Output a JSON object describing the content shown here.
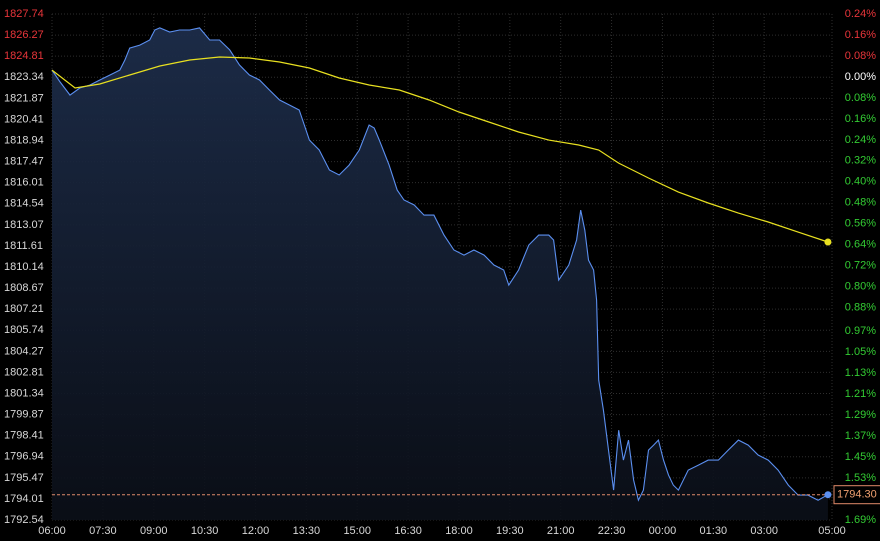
{
  "chart_data": {
    "type": "line",
    "xlim": [
      6,
      29
    ],
    "xticks": [
      {
        "value": 6,
        "label": "06:00"
      },
      {
        "value": 7.5,
        "label": "07:30"
      },
      {
        "value": 9,
        "label": "09:00"
      },
      {
        "value": 10.5,
        "label": "10:30"
      },
      {
        "value": 12,
        "label": "12:00"
      },
      {
        "value": 13.5,
        "label": "13:30"
      },
      {
        "value": 15,
        "label": "15:00"
      },
      {
        "value": 16.5,
        "label": "16:30"
      },
      {
        "value": 18,
        "label": "18:00"
      },
      {
        "value": 19.5,
        "label": "19:30"
      },
      {
        "value": 21,
        "label": "21:00"
      },
      {
        "value": 22.5,
        "label": "22:30"
      },
      {
        "value": 24,
        "label": "00:00"
      },
      {
        "value": 25.5,
        "label": "01:30"
      },
      {
        "value": 27,
        "label": "03:00"
      },
      {
        "value": 29,
        "label": "05:00"
      }
    ],
    "ylim": [
      1792.54,
      1827.74
    ],
    "yticks": [
      1827.74,
      1826.27,
      1824.81,
      1823.34,
      1821.87,
      1820.41,
      1818.94,
      1817.47,
      1816.01,
      1814.54,
      1813.07,
      1811.61,
      1810.14,
      1808.67,
      1807.21,
      1805.74,
      1804.27,
      1802.81,
      1801.34,
      1799.87,
      1798.41,
      1796.94,
      1795.47,
      1794.01,
      1792.54
    ],
    "y2lim": [
      -1.69,
      0.24
    ],
    "y2ticks": [
      {
        "value": 0.24,
        "label": "0.24%"
      },
      {
        "value": 0.16,
        "label": "0.16%"
      },
      {
        "value": 0.08,
        "label": "0.08%"
      },
      {
        "value": 0,
        "label": "0.00%"
      },
      {
        "value": -0.08,
        "label": "0.08%"
      },
      {
        "value": -0.16,
        "label": "0.16%"
      },
      {
        "value": -0.24,
        "label": "0.24%"
      },
      {
        "value": -0.32,
        "label": "0.32%"
      },
      {
        "value": -0.4,
        "label": "0.40%"
      },
      {
        "value": -0.48,
        "label": "0.48%"
      },
      {
        "value": -0.56,
        "label": "0.56%"
      },
      {
        "value": -0.64,
        "label": "0.64%"
      },
      {
        "value": -0.72,
        "label": "0.72%"
      },
      {
        "value": -0.8,
        "label": "0.80%"
      },
      {
        "value": -0.88,
        "label": "0.88%"
      },
      {
        "value": -0.97,
        "label": "0.97%"
      },
      {
        "value": -1.05,
        "label": "1.05%"
      },
      {
        "value": -1.13,
        "label": "1.13%"
      },
      {
        "value": -1.21,
        "label": "1.21%"
      },
      {
        "value": -1.29,
        "label": "1.29%"
      },
      {
        "value": -1.37,
        "label": "1.37%"
      },
      {
        "value": -1.45,
        "label": "1.45%"
      },
      {
        "value": -1.53,
        "label": "1.53%"
      },
      {
        "value": -1.61,
        "label": "1.61%"
      },
      {
        "value": -1.69,
        "label": "1.69%"
      }
    ],
    "grid": true,
    "up_color": "#e8353a",
    "down_color": "#33cc33",
    "series": [
      {
        "color": "#5b8ff0",
        "x": [
          6.0,
          6.24,
          6.53,
          6.82,
          7.12,
          7.41,
          7.71,
          8.0,
          8.15,
          8.29,
          8.59,
          8.88,
          9.03,
          9.18,
          9.47,
          9.76,
          10.06,
          10.35,
          10.65,
          10.94,
          11.24,
          11.53,
          11.82,
          12.12,
          12.41,
          12.71,
          13.0,
          13.29,
          13.44,
          13.59,
          13.88,
          14.18,
          14.47,
          14.76,
          15.06,
          15.35,
          15.5,
          15.65,
          15.94,
          16.18,
          16.38,
          16.68,
          16.97,
          17.26,
          17.56,
          17.85,
          18.15,
          18.44,
          18.74,
          19.03,
          19.32,
          19.47,
          19.76,
          20.06,
          20.35,
          20.65,
          20.79,
          20.94,
          21.24,
          21.47,
          21.59,
          21.71,
          21.82,
          21.97,
          22.06,
          22.12,
          22.26,
          22.41,
          22.56,
          22.71,
          22.85,
          23.0,
          23.15,
          23.29,
          23.44,
          23.59,
          23.74,
          23.88,
          24.03,
          24.18,
          24.32,
          24.47,
          24.76,
          25.06,
          25.35,
          25.65,
          25.94,
          26.24,
          26.53,
          26.82,
          27.12,
          27.41,
          27.71,
          28.0,
          28.29,
          28.59,
          28.88
        ],
        "values": [
          1823.84,
          1823.01,
          1822.1,
          1822.59,
          1822.8,
          1823.15,
          1823.5,
          1823.84,
          1824.54,
          1825.37,
          1825.58,
          1825.93,
          1826.63,
          1826.77,
          1826.49,
          1826.63,
          1826.63,
          1826.77,
          1825.93,
          1825.93,
          1825.24,
          1824.19,
          1823.5,
          1823.15,
          1822.45,
          1821.76,
          1821.41,
          1821.06,
          1820.02,
          1818.97,
          1818.28,
          1816.89,
          1816.54,
          1817.23,
          1818.28,
          1820.02,
          1819.81,
          1818.97,
          1817.23,
          1815.49,
          1814.8,
          1814.45,
          1813.75,
          1813.75,
          1812.36,
          1811.32,
          1810.97,
          1811.32,
          1810.97,
          1810.28,
          1809.93,
          1808.88,
          1809.93,
          1811.67,
          1812.36,
          1812.36,
          1812.02,
          1809.23,
          1810.28,
          1812.02,
          1814.1,
          1812.71,
          1810.62,
          1809.93,
          1807.84,
          1802.27,
          1800.19,
          1797.4,
          1794.62,
          1798.79,
          1796.71,
          1798.1,
          1795.32,
          1793.92,
          1794.62,
          1797.4,
          1797.75,
          1798.1,
          1796.71,
          1795.66,
          1794.97,
          1794.62,
          1796.01,
          1796.36,
          1796.71,
          1796.71,
          1797.4,
          1798.1,
          1797.75,
          1797.06,
          1796.71,
          1796.01,
          1794.97,
          1794.27,
          1794.27,
          1793.92,
          1794.3
        ],
        "last_label": "1794.30"
      },
      {
        "color": "#e8e020",
        "x": [
          6.0,
          6.68,
          7.41,
          8.29,
          9.18,
          10.06,
          10.94,
          11.82,
          12.71,
          13.59,
          14.47,
          15.35,
          16.24,
          17.12,
          18.0,
          18.88,
          19.76,
          20.65,
          21.53,
          22.12,
          22.71,
          23.59,
          24.47,
          25.35,
          26.24,
          27.12,
          28.0,
          28.88
        ],
        "values": [
          1823.84,
          1822.59,
          1822.87,
          1823.5,
          1824.12,
          1824.54,
          1824.75,
          1824.68,
          1824.4,
          1823.98,
          1823.29,
          1822.8,
          1822.45,
          1821.76,
          1820.92,
          1820.23,
          1819.53,
          1818.97,
          1818.63,
          1818.28,
          1817.37,
          1816.33,
          1815.35,
          1814.59,
          1813.89,
          1813.27,
          1812.57,
          1811.88
        ]
      }
    ]
  }
}
